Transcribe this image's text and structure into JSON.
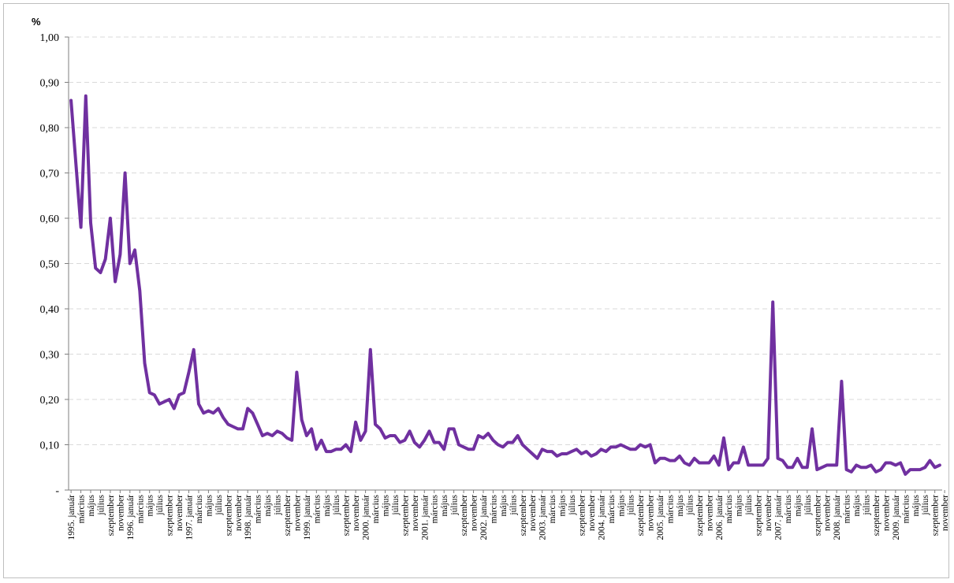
{
  "chart_data": {
    "type": "line",
    "ylabel": "%",
    "ylim": [
      0,
      1.0
    ],
    "yticks": [
      "-",
      "0,10",
      "0,20",
      "0,30",
      "0,40",
      "0,50",
      "0,60",
      "0,70",
      "0,80",
      "0,90",
      "1,00"
    ],
    "x_tick_labels": [
      "1995. január",
      "március",
      "május",
      "július",
      "szeptember",
      "november",
      "1996. január",
      "március",
      "május",
      "július",
      "szeptember",
      "november",
      "1997. január",
      "március",
      "május",
      "július",
      "szeptember",
      "november",
      "1998. január",
      "március",
      "május",
      "július",
      "szeptember",
      "november",
      "1999. január",
      "március",
      "május",
      "július",
      "szeptember",
      "november",
      "2000. január",
      "március",
      "május",
      "július",
      "szeptember",
      "november",
      "2001. január",
      "március",
      "május",
      "július",
      "szeptember",
      "november",
      "2002. január",
      "március",
      "május",
      "július",
      "szeptember",
      "november",
      "2003. január",
      "március",
      "május",
      "július",
      "szeptember",
      "november",
      "2004. január",
      "március",
      "május",
      "július",
      "szeptember",
      "november",
      "2005. január",
      "március",
      "május",
      "július",
      "szeptember",
      "november",
      "2006. január",
      "március",
      "május",
      "július",
      "szeptember",
      "november",
      "2007. január",
      "március",
      "május",
      "július",
      "szeptember",
      "november",
      "2008. január",
      "március",
      "május",
      "július",
      "szeptember",
      "november",
      "2009. január",
      "március",
      "május",
      "július",
      "szeptember",
      "november"
    ],
    "grid": true,
    "colors": {
      "line": "#7030A0",
      "grid": "#d9d9d9",
      "axis": "#7f7f7f"
    },
    "series": [
      {
        "values": [
          0.86,
          0.72,
          0.58,
          0.87,
          0.59,
          0.49,
          0.48,
          0.51,
          0.6,
          0.46,
          0.52,
          0.7,
          0.5,
          0.53,
          0.44,
          0.28,
          0.215,
          0.21,
          0.19,
          0.195,
          0.2,
          0.18,
          0.21,
          0.215,
          0.26,
          0.31,
          0.19,
          0.17,
          0.175,
          0.17,
          0.18,
          0.16,
          0.145,
          0.14,
          0.135,
          0.135,
          0.18,
          0.17,
          0.145,
          0.12,
          0.125,
          0.12,
          0.13,
          0.125,
          0.115,
          0.11,
          0.26,
          0.155,
          0.12,
          0.135,
          0.09,
          0.11,
          0.085,
          0.085,
          0.09,
          0.09,
          0.1,
          0.085,
          0.15,
          0.11,
          0.13,
          0.31,
          0.145,
          0.135,
          0.115,
          0.12,
          0.12,
          0.105,
          0.11,
          0.13,
          0.105,
          0.095,
          0.11,
          0.13,
          0.105,
          0.105,
          0.09,
          0.135,
          0.135,
          0.1,
          0.095,
          0.09,
          0.09,
          0.12,
          0.115,
          0.125,
          0.11,
          0.1,
          0.095,
          0.105,
          0.105,
          0.12,
          0.1,
          0.09,
          0.08,
          0.07,
          0.09,
          0.085,
          0.085,
          0.075,
          0.08,
          0.08,
          0.085,
          0.09,
          0.08,
          0.085,
          0.075,
          0.08,
          0.09,
          0.085,
          0.095,
          0.095,
          0.1,
          0.095,
          0.09,
          0.09,
          0.1,
          0.095,
          0.1,
          0.06,
          0.07,
          0.07,
          0.065,
          0.065,
          0.075,
          0.06,
          0.055,
          0.07,
          0.06,
          0.06,
          0.06,
          0.075,
          0.055,
          0.115,
          0.045,
          0.06,
          0.06,
          0.095,
          0.055,
          0.055,
          0.055,
          0.055,
          0.07,
          0.415,
          0.07,
          0.065,
          0.05,
          0.05,
          0.07,
          0.05,
          0.05,
          0.135,
          0.045,
          0.05,
          0.055,
          0.055,
          0.055,
          0.24,
          0.045,
          0.04,
          0.055,
          0.05,
          0.05,
          0.055,
          0.04,
          0.045,
          0.06,
          0.06,
          0.055,
          0.06,
          0.035,
          0.045,
          0.045,
          0.045,
          0.05,
          0.065,
          0.05,
          0.055
        ]
      }
    ]
  }
}
